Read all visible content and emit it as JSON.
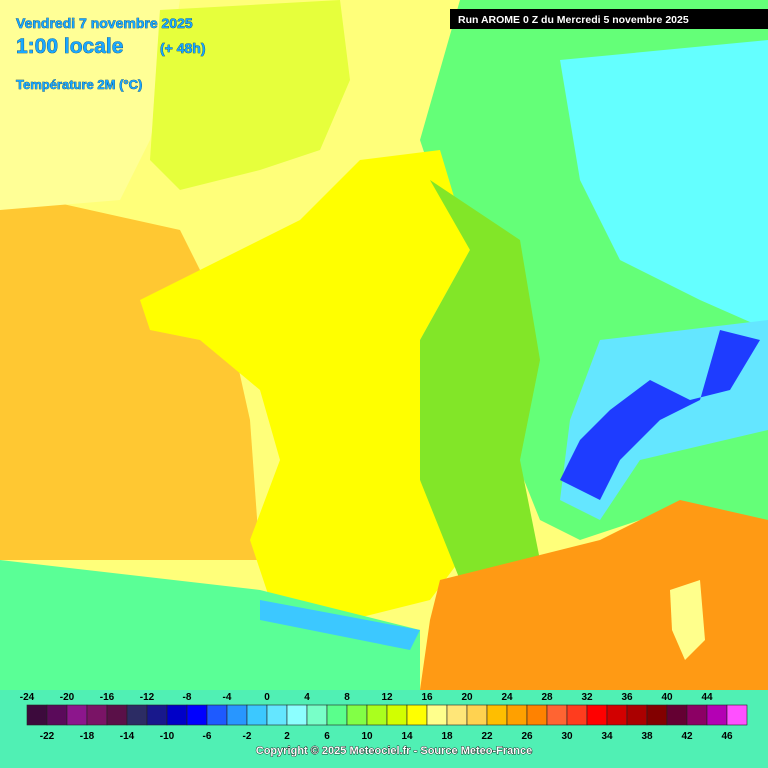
{
  "header": {
    "date": "Vendredi 7 novembre 2025",
    "time": "1:00 locale",
    "lead": "(+ 48h)",
    "field": "Température 2M (°C)",
    "run": "Run AROME 0 Z du Mercredi 5 novembre 2025"
  },
  "legend": {
    "values": [
      -24,
      -22,
      -20,
      -18,
      -16,
      -14,
      -12,
      -10,
      -8,
      -6,
      -4,
      -2,
      0,
      2,
      4,
      6,
      8,
      10,
      12,
      14,
      16,
      18,
      20,
      22,
      24,
      26,
      28,
      30,
      32,
      34,
      36,
      38,
      40,
      42,
      44,
      46
    ],
    "colors": [
      "#3c0a3c",
      "#5a0a5a",
      "#8c168c",
      "#7a1466",
      "#5a1048",
      "#2c2c64",
      "#18188c",
      "#0000c8",
      "#0000ff",
      "#1e5aff",
      "#2896ff",
      "#3cc8ff",
      "#64e6ff",
      "#8cffff",
      "#78ffc8",
      "#5aff8c",
      "#82ff46",
      "#aaff1e",
      "#d2ff00",
      "#ffff00",
      "#ffff8c",
      "#ffe678",
      "#ffd250",
      "#ffbe00",
      "#ffa000",
      "#ff8200",
      "#ff6432",
      "#ff3c1e",
      "#ff0000",
      "#d20000",
      "#aa0000",
      "#820000",
      "#640032",
      "#8c0064",
      "#b400b4",
      "#ff50ff"
    ]
  },
  "footer": {
    "copyright": "Copyright © 2025 Meteociel.fr - Source Meteo-France"
  }
}
